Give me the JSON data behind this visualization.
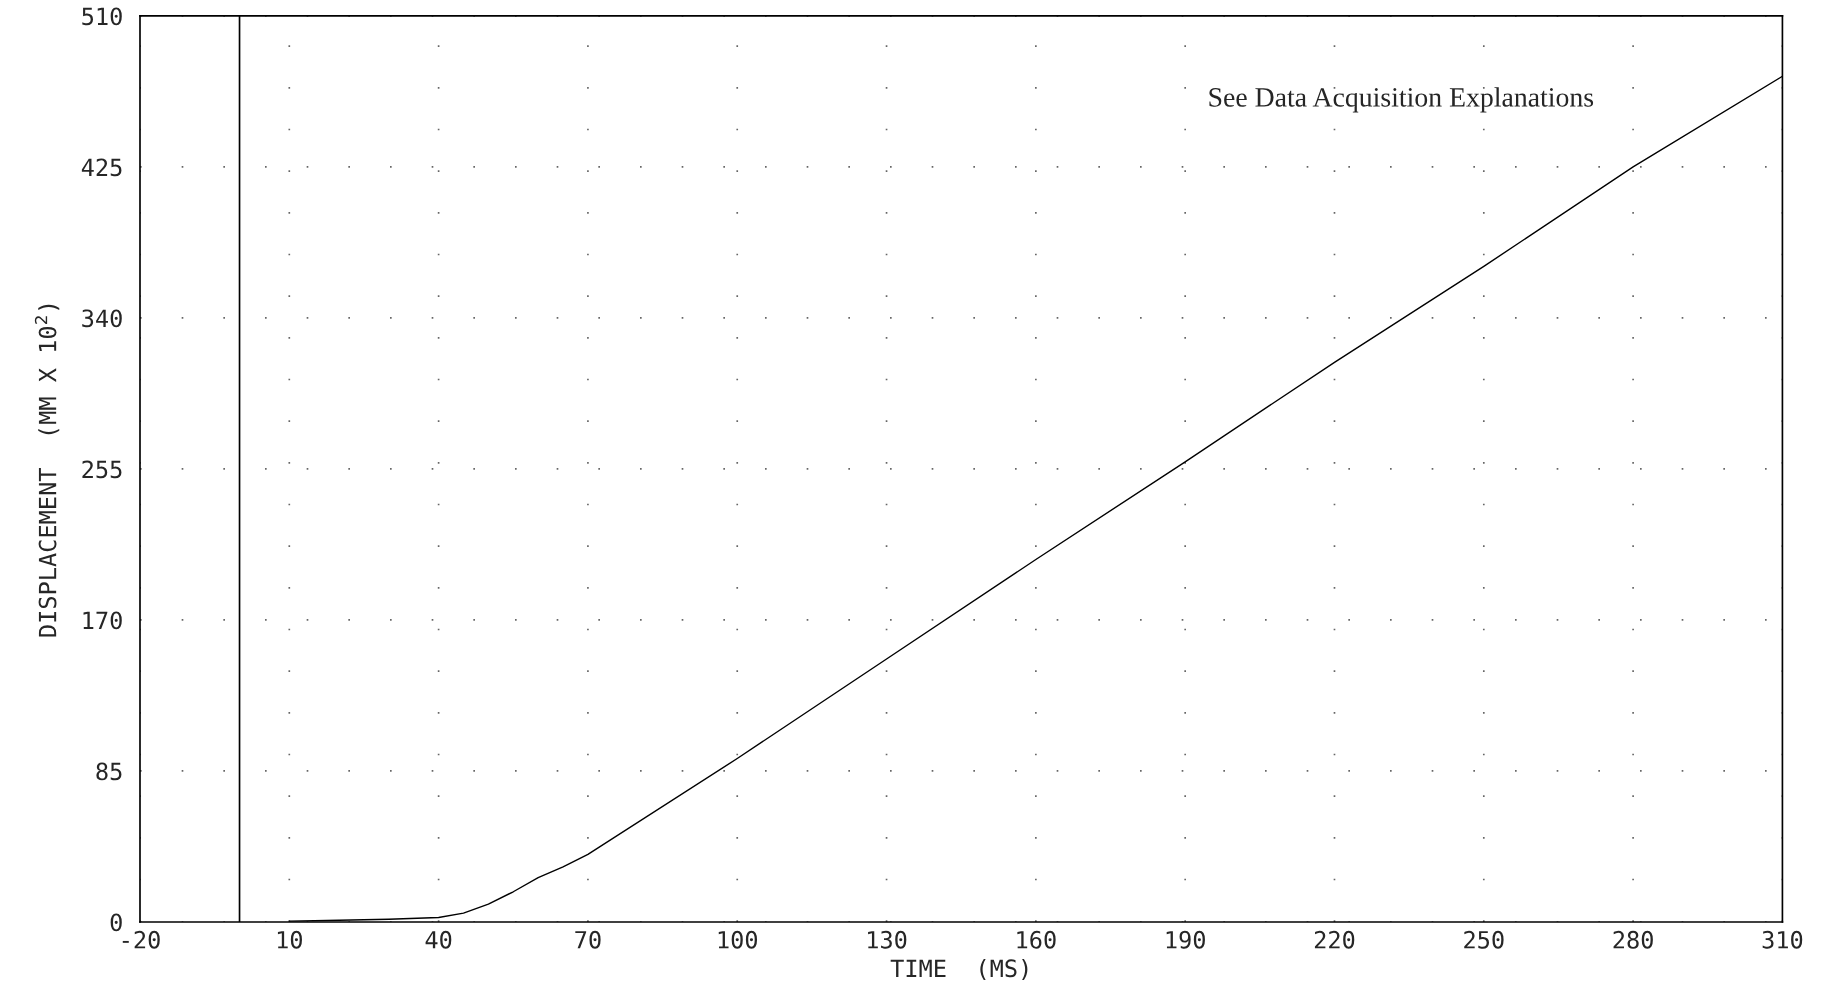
{
  "chart_data": {
    "type": "line",
    "xlabel": "TIME  (MS)",
    "ylabel": "DISPLACEMENT  (MM X 10$^{2}$)",
    "annotations": [
      "See Data Acquisition Explanations"
    ],
    "x": [
      10,
      20,
      30,
      40,
      45,
      50,
      55,
      60,
      65,
      70,
      100,
      130,
      160,
      190,
      220,
      250,
      280,
      310
    ],
    "series": [
      {
        "color": "#000000",
        "values": [
          0.5,
          1,
          1.5,
          2.5,
          5,
          10,
          17,
          25,
          31,
          38,
          92,
          148,
          204,
          259,
          315,
          369,
          425,
          476
        ]
      }
    ],
    "xlim": [
      -20,
      310
    ],
    "xticks": [
      -20,
      10,
      40,
      70,
      100,
      130,
      160,
      190,
      220,
      250,
      280,
      310
    ],
    "ylim": [
      0,
      510
    ],
    "yticks": [
      0,
      85,
      170,
      255,
      340,
      425,
      510
    ],
    "ref_lines": [
      {
        "axis": "x",
        "value": 0,
        "color": "#000000"
      }
    ],
    "grid": true,
    "marker": "none",
    "line_style": "solid"
  }
}
